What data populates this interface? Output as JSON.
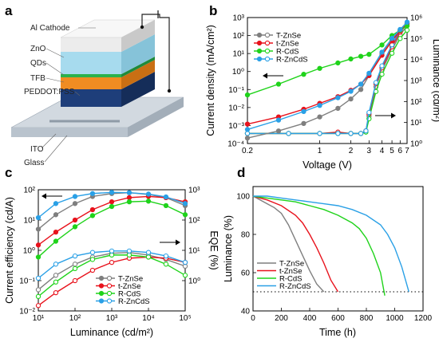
{
  "panel_labels": {
    "a": "a",
    "b": "b",
    "c": "c",
    "d": "d"
  },
  "device": {
    "layers": [
      {
        "label": "Al Cathode",
        "color": "#e3e3e3"
      },
      {
        "label": "ZnO",
        "color": "#9fd6ec"
      },
      {
        "label": "QDs",
        "color": "#b4e2f2"
      },
      {
        "label": "TFB",
        "color": "#f08c22"
      },
      {
        "label": "PEDDOT:PSS",
        "color": "#1e3e7a"
      },
      {
        "label": "ITO",
        "color": "#b6c2ce"
      },
      {
        "label": "Glass",
        "color": "#c3cdd6"
      }
    ]
  },
  "colors": {
    "T-ZnSe": "#7f7f7f",
    "t-ZnSe": "#e8121c",
    "R-CdS": "#1fd31a",
    "R-ZnCdS": "#2aa0e6"
  },
  "chart_data": [
    {
      "id": "b",
      "type": "line",
      "xlabel": "Voltage (V)",
      "ylabel": "Current density (mA/cm²)",
      "y2label": "Luminance (cd/m²)",
      "xscale": "log",
      "yscale": "log",
      "y2scale": "log",
      "xlim": [
        0.2,
        7
      ],
      "ylim": [
        0.0001,
        1000
      ],
      "y2lim": [
        1,
        1000000
      ],
      "x_ticks": [
        "0.2",
        "1",
        "2",
        "3",
        "4",
        "5",
        "6",
        "7"
      ],
      "y_ticks": [
        "10⁻⁴",
        "10⁻³",
        "10⁻²",
        "10⁻¹",
        "10⁰",
        "10¹",
        "10²",
        "10³"
      ],
      "y2_ticks": [
        "10⁰",
        "10¹",
        "10²",
        "10³",
        "10⁴",
        "10⁵",
        "10⁶"
      ],
      "legend": [
        "T-ZnSe",
        "t-ZnSe",
        "R-CdS",
        "R-ZnCdS"
      ],
      "legend_position": "top-left",
      "arrows": [
        "left",
        "right"
      ],
      "current_density": [
        {
          "name": "T-ZnSe",
          "x": [
            0.2,
            0.4,
            0.7,
            1.0,
            1.5,
            2.0,
            2.5,
            3.0,
            4.0,
            5.0,
            6.0,
            7.0
          ],
          "y": [
            0.0002,
            0.0005,
            0.0013,
            0.003,
            0.009,
            0.03,
            0.1,
            0.6,
            10,
            60,
            200,
            500
          ]
        },
        {
          "name": "t-ZnSe",
          "x": [
            0.2,
            0.4,
            0.7,
            1.0,
            1.5,
            2.0,
            2.5,
            3.0,
            4.0,
            5.0,
            6.0,
            7.0
          ],
          "y": [
            0.0012,
            0.003,
            0.008,
            0.017,
            0.04,
            0.09,
            0.2,
            0.6,
            8,
            50,
            180,
            450
          ]
        },
        {
          "name": "R-CdS",
          "x": [
            0.2,
            0.4,
            0.7,
            1.0,
            1.5,
            2.0,
            2.5,
            3.0,
            4.0,
            5.0,
            6.0,
            7.0
          ],
          "y": [
            0.05,
            0.2,
            0.7,
            1.5,
            3,
            5,
            7,
            9,
            30,
            100,
            200,
            350
          ]
        },
        {
          "name": "R-ZnCdS",
          "x": [
            0.2,
            0.4,
            0.7,
            1.0,
            1.5,
            2.0,
            2.5,
            3.0,
            4.0,
            5.0,
            6.0,
            7.0
          ],
          "y": [
            0.0006,
            0.002,
            0.006,
            0.013,
            0.035,
            0.08,
            0.2,
            0.8,
            12,
            70,
            220,
            550
          ]
        }
      ],
      "luminance": [
        {
          "name": "T-ZnSe",
          "x": [
            0.2,
            0.5,
            1.0,
            1.5,
            2.0,
            2.5,
            2.8,
            3.0,
            3.5,
            4.0,
            5.0,
            6.0,
            7.0
          ],
          "y": [
            3,
            3,
            3,
            3,
            3,
            3,
            4,
            20,
            500,
            3000,
            30000,
            150000,
            400000
          ]
        },
        {
          "name": "t-ZnSe",
          "x": [
            0.2,
            0.5,
            1.0,
            1.5,
            2.0,
            2.5,
            2.8,
            3.0,
            3.5,
            4.0,
            5.0,
            6.0,
            7.0
          ],
          "y": [
            3,
            3,
            3,
            3.5,
            3,
            3,
            4,
            25,
            700,
            4000,
            40000,
            200000,
            500000
          ]
        },
        {
          "name": "R-CdS",
          "x": [
            0.2,
            0.5,
            1.0,
            1.5,
            2.0,
            2.5,
            2.8,
            3.0,
            3.5,
            4.0,
            5.0,
            6.0,
            7.0
          ],
          "y": [
            3,
            3,
            3,
            3,
            3,
            3,
            3.5,
            15,
            300,
            2000,
            20000,
            100000,
            250000
          ]
        },
        {
          "name": "R-ZnCdS",
          "x": [
            0.2,
            0.5,
            1.0,
            1.5,
            2.0,
            2.5,
            2.8,
            3.0,
            3.5,
            4.0,
            5.0,
            6.0,
            7.0
          ],
          "y": [
            3,
            3,
            3,
            3,
            3,
            3,
            4,
            30,
            800,
            5000,
            50000,
            250000,
            600000
          ]
        }
      ]
    },
    {
      "id": "c",
      "type": "line",
      "xlabel": "Luminance (cd/m²)",
      "ylabel": "Current efficiency (cd/A)",
      "y2label": "EQE (%)",
      "xscale": "log",
      "yscale": "log",
      "y2scale": "log",
      "xlim": [
        10,
        100000
      ],
      "ylim": [
        0.01,
        100
      ],
      "y2lim": [
        0.1,
        1000
      ],
      "x_ticks": [
        "10¹",
        "10²",
        "10³",
        "10⁴",
        "10⁵"
      ],
      "y_ticks": [
        "10⁻²",
        "10⁻¹",
        "10⁰",
        "10¹",
        "10²"
      ],
      "y2_ticks": [
        "10⁰",
        "10¹",
        "10²",
        "10³"
      ],
      "legend": [
        "T-ZnSe",
        "t-ZnSe",
        "R-CdS",
        "R-ZnCdS"
      ],
      "legend_position": "bottom-center",
      "arrows": [
        "left",
        "right"
      ],
      "current_efficiency": [
        {
          "name": "T-ZnSe",
          "x": [
            10,
            30,
            100,
            300,
            1000,
            3000,
            10000,
            30000,
            100000
          ],
          "y": [
            5,
            15,
            35,
            60,
            75,
            80,
            70,
            55,
            30
          ]
        },
        {
          "name": "t-ZnSe",
          "x": [
            10,
            30,
            100,
            300,
            1000,
            3000,
            10000,
            30000,
            100000
          ],
          "y": [
            1.5,
            4,
            10,
            22,
            40,
            55,
            60,
            55,
            40
          ]
        },
        {
          "name": "R-CdS",
          "x": [
            10,
            30,
            100,
            300,
            1000,
            3000,
            10000,
            30000,
            100000
          ],
          "y": [
            0.6,
            2,
            6,
            14,
            28,
            40,
            42,
            30,
            15
          ]
        },
        {
          "name": "R-ZnCdS",
          "x": [
            10,
            30,
            100,
            300,
            1000,
            3000,
            10000,
            30000,
            100000
          ],
          "y": [
            12,
            35,
            60,
            75,
            82,
            80,
            72,
            58,
            35
          ]
        }
      ],
      "eqe": [
        {
          "name": "T-ZnSe",
          "x": [
            10,
            30,
            100,
            300,
            1000,
            3000,
            10000,
            30000,
            100000
          ],
          "y": [
            0.5,
            1.5,
            3.5,
            6,
            8,
            8.5,
            7,
            5,
            3
          ]
        },
        {
          "name": "t-ZnSe",
          "x": [
            10,
            30,
            100,
            300,
            1000,
            3000,
            10000,
            30000,
            100000
          ],
          "y": [
            0.15,
            0.4,
            1,
            2.2,
            4,
            5.5,
            6,
            5.5,
            4
          ]
        },
        {
          "name": "R-CdS",
          "x": [
            10,
            30,
            100,
            300,
            1000,
            3000,
            10000,
            30000,
            100000
          ],
          "y": [
            0.3,
            0.9,
            2.5,
            5,
            7,
            7,
            6,
            3.5,
            1.5
          ]
        },
        {
          "name": "R-ZnCdS",
          "x": [
            10,
            30,
            100,
            300,
            1000,
            3000,
            10000,
            30000,
            100000
          ],
          "y": [
            1.2,
            3.5,
            6.5,
            8.5,
            9.5,
            9.5,
            8.5,
            6.5,
            4
          ]
        }
      ]
    },
    {
      "id": "d",
      "type": "line",
      "xlabel": "Time (h)",
      "ylabel": "Luminance (%)",
      "xlim": [
        0,
        1200
      ],
      "ylim": [
        40,
        105
      ],
      "x_ticks": [
        "0",
        "200",
        "400",
        "600",
        "800",
        "1000",
        "1200"
      ],
      "y_ticks": [
        "40",
        "60",
        "80",
        "100"
      ],
      "legend": [
        "T-ZnSe",
        "t-ZnSe",
        "R-CdS",
        "R-ZnCdS"
      ],
      "legend_position": "bottom-left",
      "reference_line": 50,
      "series": [
        {
          "name": "T-ZnSe",
          "x": [
            0,
            50,
            100,
            150,
            200,
            250,
            300,
            350,
            400,
            450,
            500
          ],
          "y": [
            100,
            98,
            96,
            94,
            91,
            85,
            77,
            69,
            61,
            54,
            50
          ]
        },
        {
          "name": "t-ZnSe",
          "x": [
            0,
            50,
            100,
            200,
            300,
            350,
            400,
            450,
            500,
            550,
            600
          ],
          "y": [
            100,
            99,
            98,
            95,
            90,
            86,
            80,
            73,
            65,
            56,
            50
          ]
        },
        {
          "name": "R-CdS",
          "x": [
            0,
            100,
            200,
            300,
            400,
            500,
            600,
            700,
            750,
            800,
            850,
            900,
            930
          ],
          "y": [
            100,
            99,
            98,
            97,
            95,
            93,
            90,
            86,
            83,
            78,
            70,
            60,
            48
          ]
        },
        {
          "name": "R-ZnCdS",
          "x": [
            0,
            100,
            200,
            300,
            400,
            500,
            600,
            700,
            800,
            900,
            950,
            1000,
            1050,
            1100
          ],
          "y": [
            100,
            100,
            99,
            98,
            97,
            96,
            95,
            93,
            90,
            85,
            80,
            73,
            63,
            50
          ]
        }
      ]
    }
  ]
}
